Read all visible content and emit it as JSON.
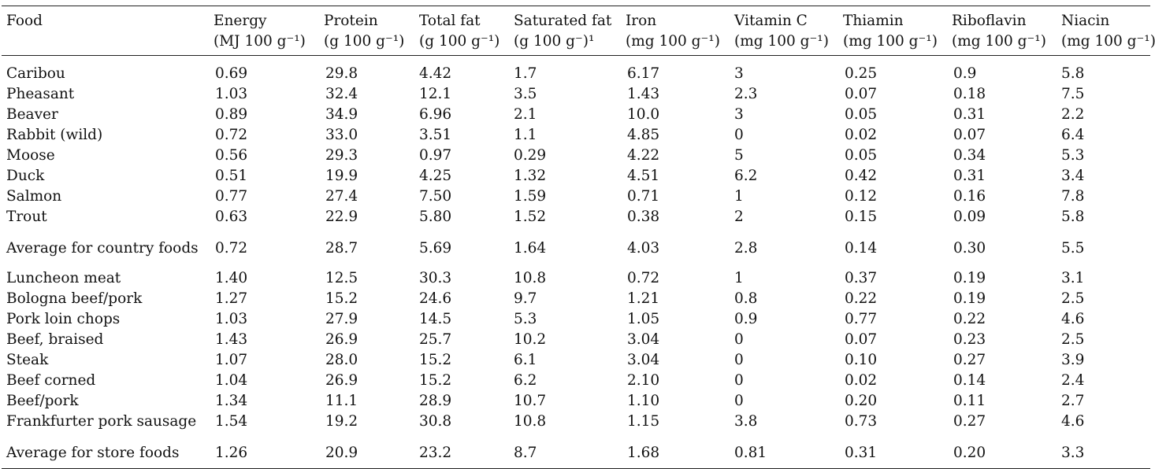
{
  "columns": [
    {
      "l1": "Food",
      "l2": ""
    },
    {
      "l1": "Energy",
      "l2": "(MJ 100 g⁻¹)"
    },
    {
      "l1": "Protein",
      "l2": "(g 100 g⁻¹)"
    },
    {
      "l1": "Total fat",
      "l2": "(g 100 g⁻¹)"
    },
    {
      "l1": "Saturated fat",
      "l2": "(g 100 g⁻)¹"
    },
    {
      "l1": "Iron",
      "l2": "(mg 100 g⁻¹)"
    },
    {
      "l1": "Vitamin C",
      "l2": "(mg 100 g⁻¹)"
    },
    {
      "l1": "Thiamin",
      "l2": "(mg 100 g⁻¹)"
    },
    {
      "l1": "Riboflavin",
      "l2": "(mg 100 g⁻¹)"
    },
    {
      "l1": "Niacin",
      "l2": "(mg 100 g⁻¹)"
    }
  ],
  "rows": [
    [
      "Caribou",
      "0.69",
      "29.8",
      "4.42",
      "1.7",
      "6.17",
      "3",
      "0.25",
      "0.9",
      "5.8"
    ],
    [
      "Pheasant",
      "1.03",
      "32.4",
      "12.1",
      "3.5",
      "1.43",
      "2.3",
      "0.07",
      "0.18",
      "7.5"
    ],
    [
      "Beaver",
      "0.89",
      "34.9",
      "6.96",
      "2.1",
      "10.0",
      "3",
      "0.05",
      "0.31",
      "2.2"
    ],
    [
      "Rabbit (wild)",
      "0.72",
      "33.0",
      "3.51",
      "1.1",
      "4.85",
      "0",
      "0.02",
      "0.07",
      "6.4"
    ],
    [
      "Moose",
      "0.56",
      "29.3",
      "0.97",
      "0.29",
      "4.22",
      "5",
      "0.05",
      "0.34",
      "5.3"
    ],
    [
      "Duck",
      "0.51",
      "19.9",
      "4.25",
      "1.32",
      "4.51",
      "6.2",
      "0.42",
      "0.31",
      "3.4"
    ],
    [
      "Salmon",
      "0.77",
      "27.4",
      "7.50",
      "1.59",
      "0.71",
      "1",
      "0.12",
      "0.16",
      "7.8"
    ],
    [
      "Trout",
      "0.63",
      "22.9",
      "5.80",
      "1.52",
      "0.38",
      "2",
      "0.15",
      "0.09",
      "5.8"
    ],
    [
      "Average for country foods",
      "0.72",
      "28.7",
      "5.69",
      "1.64",
      "4.03",
      "2.8",
      "0.14",
      "0.30",
      "5.5"
    ],
    [
      "Luncheon meat",
      "1.40",
      "12.5",
      "30.3",
      "10.8",
      "0.72",
      "1",
      "0.37",
      "0.19",
      "3.1"
    ],
    [
      "Bologna beef/pork",
      "1.27",
      "15.2",
      "24.6",
      "9.7",
      "1.21",
      "0.8",
      "0.22",
      "0.19",
      "2.5"
    ],
    [
      "Pork loin chops",
      "1.03",
      "27.9",
      "14.5",
      "5.3",
      "1.05",
      "0.9",
      "0.77",
      "0.22",
      "4.6"
    ],
    [
      "Beef, braised",
      "1.43",
      "26.9",
      "25.7",
      "10.2",
      "3.04",
      "0",
      "0.07",
      "0.23",
      "2.5"
    ],
    [
      "Steak",
      "1.07",
      "28.0",
      "15.2",
      "6.1",
      "3.04",
      "0",
      "0.10",
      "0.27",
      "3.9"
    ],
    [
      "Beef corned",
      "1.04",
      "26.9",
      "15.2",
      "6.2",
      "2.10",
      "0",
      "0.02",
      "0.14",
      "2.4"
    ],
    [
      "Beef/pork",
      "1.34",
      "11.1",
      "28.9",
      "10.7",
      "1.10",
      "0",
      "0.20",
      "0.11",
      "2.7"
    ],
    [
      "Frankfurter pork sausage",
      "1.54",
      "19.2",
      "30.8",
      "10.8",
      "1.15",
      "3.8",
      "0.73",
      "0.27",
      "4.6"
    ],
    [
      "Average for store foods",
      "1.26",
      "20.9",
      "23.2",
      "8.7",
      "1.68",
      "0.81",
      "0.31",
      "0.20",
      "3.3"
    ]
  ]
}
